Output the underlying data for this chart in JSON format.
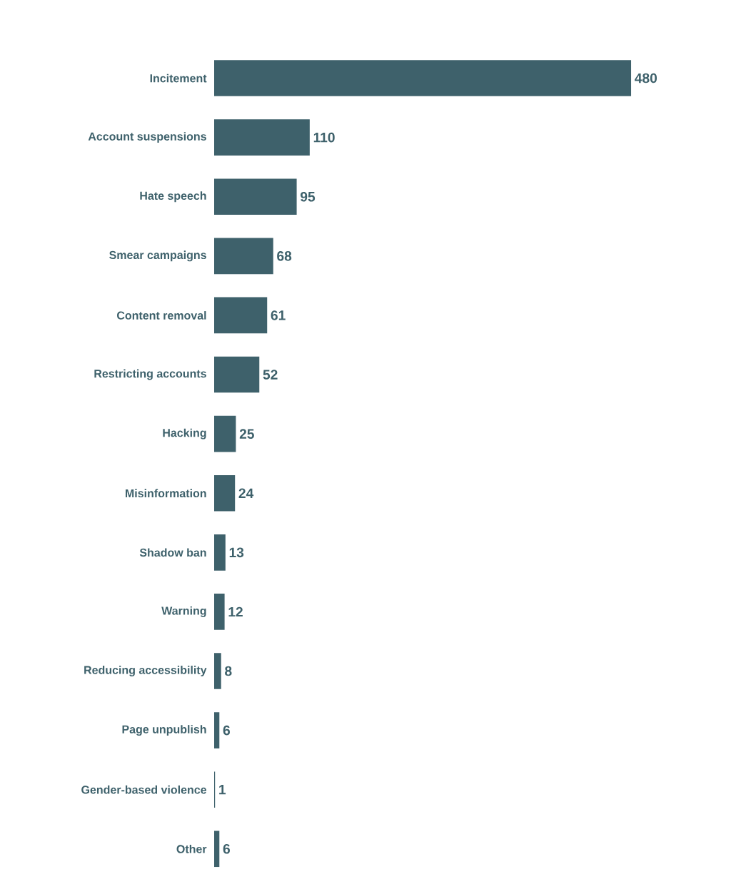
{
  "chart_data": {
    "type": "bar",
    "orientation": "horizontal",
    "data_labels": true,
    "color": "#3e616b",
    "categories": [
      "Incitement",
      "Account suspensions",
      "Hate speech",
      "Smear campaigns",
      "Content removal",
      "Restricting accounts",
      "Hacking",
      "Misinformation",
      "Shadow ban",
      "Warning",
      "Reducing accessibility",
      "Page unpublish",
      "Gender-based violence",
      "Other"
    ],
    "values": [
      480,
      110,
      95,
      68,
      61,
      52,
      25,
      24,
      13,
      12,
      8,
      6,
      1,
      6
    ]
  }
}
